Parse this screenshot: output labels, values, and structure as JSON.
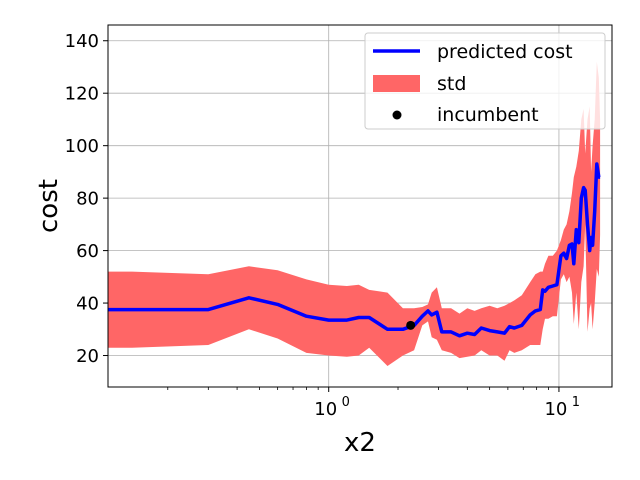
{
  "chart_data": {
    "type": "line",
    "xlabel": "x2",
    "ylabel": "cost",
    "xscale": "log",
    "xlim": [
      0.11,
      17
    ],
    "ylim": [
      8,
      146
    ],
    "grid": true,
    "legend_position": "top-right",
    "x_ticks": [
      {
        "value": 1,
        "base": "10",
        "exp": "0"
      },
      {
        "value": 10,
        "base": "10",
        "exp": "1"
      }
    ],
    "y_ticks": [
      20,
      40,
      60,
      80,
      100,
      120,
      140
    ],
    "legend": [
      {
        "label": "predicted cost",
        "kind": "line",
        "color": "#0000ff"
      },
      {
        "label": "std",
        "kind": "patch",
        "color": "#ff6666"
      },
      {
        "label": "incumbent",
        "kind": "marker",
        "color": "#000000"
      }
    ],
    "series": [
      {
        "name": "predicted cost",
        "kind": "mean_with_std",
        "line_color": "#0000ff",
        "band_color": "#ff6666",
        "x": [
          0.11,
          0.14,
          0.3,
          0.45,
          0.6,
          0.8,
          1.0,
          1.2,
          1.35,
          1.5,
          1.8,
          2.1,
          2.35,
          2.55,
          2.7,
          2.8,
          2.95,
          3.1,
          3.4,
          3.7,
          4.0,
          4.3,
          4.6,
          5.0,
          5.4,
          5.8,
          6.1,
          6.4,
          6.9,
          7.5,
          7.9,
          8.3,
          8.5,
          8.7,
          9.0,
          9.4,
          9.8,
          10.2,
          10.5,
          10.8,
          11.1,
          11.4,
          11.6,
          11.9,
          12.2,
          12.5,
          12.8,
          13.0,
          13.3,
          13.6,
          13.8,
          14.0,
          14.3,
          14.6,
          14.9,
          15.1
        ],
        "y": [
          37.5,
          37.5,
          37.5,
          42,
          39.5,
          35,
          33.5,
          33.5,
          34.5,
          34.5,
          30,
          30,
          31.5,
          35,
          37,
          35.5,
          36.5,
          29,
          29,
          27.5,
          28.5,
          28,
          30.5,
          29.5,
          29,
          28.5,
          31,
          30.5,
          31.5,
          35.5,
          37,
          37.5,
          45,
          44.5,
          46,
          46.5,
          47,
          58,
          59,
          57,
          62,
          62.5,
          55,
          68,
          63,
          80,
          84,
          83,
          70,
          60,
          65,
          62,
          75,
          93,
          88,
          88
        ],
        "upper": [
          52,
          52,
          51,
          54,
          52.5,
          49,
          47,
          46.5,
          47,
          45,
          44,
          38,
          38,
          38.5,
          39.5,
          44,
          46,
          38,
          38,
          36,
          38,
          37,
          38,
          39,
          38,
          39,
          40,
          41,
          43,
          48,
          51,
          52,
          52,
          55,
          58,
          58,
          60,
          64,
          68,
          70,
          75,
          82,
          88,
          92,
          98,
          110,
          114,
          97,
          110,
          115,
          90,
          100,
          110,
          132,
          126,
          110
        ],
        "lower": [
          23,
          23,
          24,
          30,
          26.5,
          21,
          20,
          19.5,
          20,
          23,
          16,
          20,
          22,
          31.5,
          33,
          27,
          26,
          22,
          21,
          19,
          19.5,
          20,
          22,
          20,
          20,
          18,
          22,
          21,
          22,
          24,
          24,
          24,
          30,
          34,
          34,
          35,
          35,
          49,
          51,
          48,
          50,
          44,
          32,
          44,
          30,
          48,
          54,
          70,
          29,
          38,
          40,
          30,
          40,
          53,
          50,
          66
        ]
      }
    ],
    "incumbent": {
      "x": 2.27,
      "y": 31.5,
      "color": "#000000"
    }
  }
}
